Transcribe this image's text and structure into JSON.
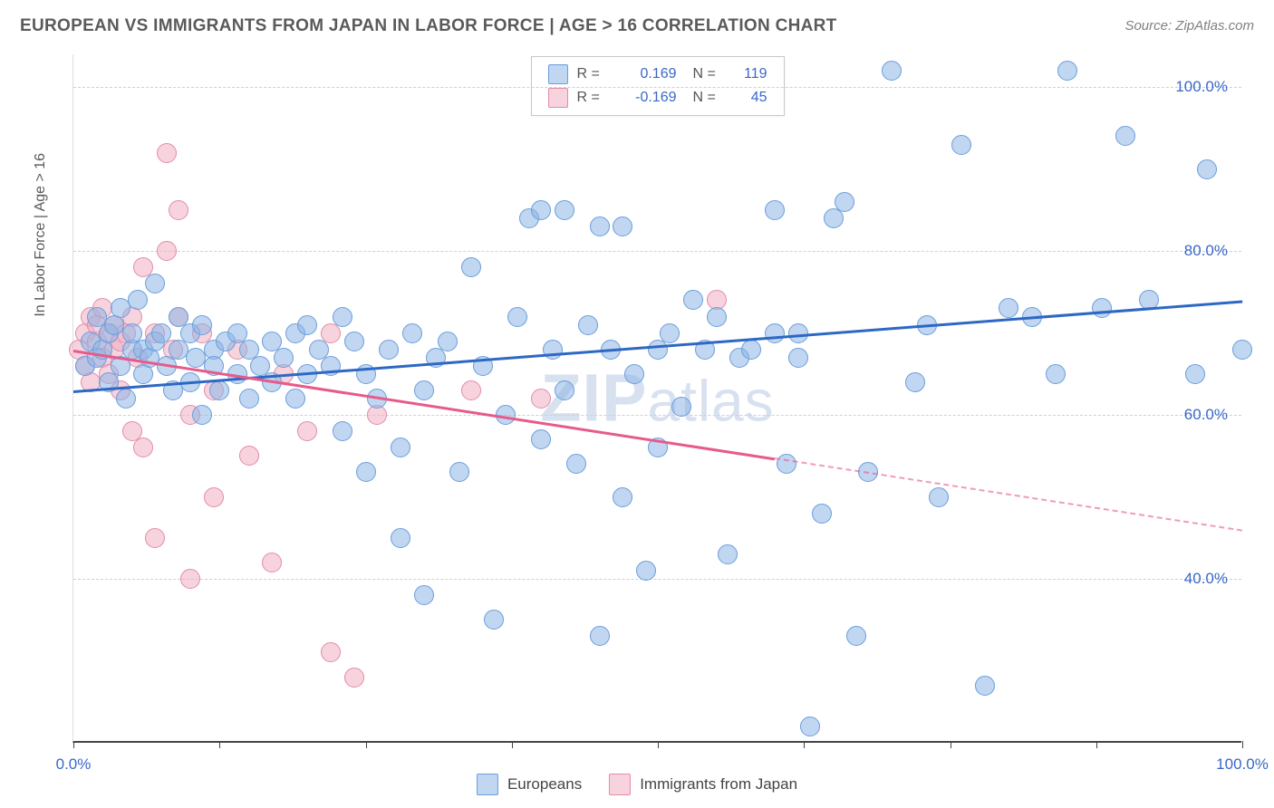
{
  "title": "EUROPEAN VS IMMIGRANTS FROM JAPAN IN LABOR FORCE | AGE > 16 CORRELATION CHART",
  "source": "Source: ZipAtlas.com",
  "ylabel": "In Labor Force | Age > 16",
  "watermark": "ZIPatlas",
  "chart": {
    "type": "scatter",
    "xlim": [
      0,
      100
    ],
    "ylim": [
      20,
      104
    ],
    "grid_color": "#d0d0d0",
    "axis_color": "#444444",
    "background_color": "#ffffff",
    "y_ticks": [
      40,
      60,
      80,
      100
    ],
    "y_tick_labels": [
      "40.0%",
      "60.0%",
      "80.0%",
      "100.0%"
    ],
    "x_ticks": [
      0,
      12.5,
      25,
      37.5,
      50,
      62.5,
      75,
      87.5,
      100
    ],
    "x_tick_labels_shown": {
      "0": "0.0%",
      "100": "100.0%"
    },
    "marker_radius": 11,
    "marker_border_width": 1.5,
    "series": {
      "europeans": {
        "label": "Europeans",
        "fill_color": "rgba(140,180,230,0.55)",
        "border_color": "#6a9edb",
        "trend_color": "#2d68c4",
        "R": "0.169",
        "N": "119",
        "trend": {
          "x1": 0,
          "y1": 63,
          "x2": 100,
          "y2": 74,
          "dash_from_x": null
        },
        "points": [
          [
            1,
            66
          ],
          [
            1.5,
            69
          ],
          [
            2,
            67
          ],
          [
            2,
            72
          ],
          [
            2.5,
            68
          ],
          [
            3,
            64
          ],
          [
            3,
            70
          ],
          [
            3.5,
            71
          ],
          [
            4,
            66
          ],
          [
            4,
            73
          ],
          [
            4.5,
            62
          ],
          [
            5,
            68
          ],
          [
            5,
            70
          ],
          [
            5.5,
            74
          ],
          [
            6,
            65
          ],
          [
            6,
            68
          ],
          [
            6.5,
            67
          ],
          [
            7,
            69
          ],
          [
            7,
            76
          ],
          [
            7.5,
            70
          ],
          [
            8,
            66
          ],
          [
            8.5,
            63
          ],
          [
            9,
            68
          ],
          [
            9,
            72
          ],
          [
            10,
            64
          ],
          [
            10,
            70
          ],
          [
            10.5,
            67
          ],
          [
            11,
            71
          ],
          [
            11,
            60
          ],
          [
            12,
            68
          ],
          [
            12,
            66
          ],
          [
            12.5,
            63
          ],
          [
            13,
            69
          ],
          [
            14,
            70
          ],
          [
            14,
            65
          ],
          [
            15,
            68
          ],
          [
            15,
            62
          ],
          [
            16,
            66
          ],
          [
            17,
            69
          ],
          [
            17,
            64
          ],
          [
            18,
            67
          ],
          [
            19,
            70
          ],
          [
            19,
            62
          ],
          [
            20,
            65
          ],
          [
            20,
            71
          ],
          [
            21,
            68
          ],
          [
            22,
            66
          ],
          [
            23,
            72
          ],
          [
            23,
            58
          ],
          [
            24,
            69
          ],
          [
            25,
            65
          ],
          [
            25,
            53
          ],
          [
            26,
            62
          ],
          [
            27,
            68
          ],
          [
            28,
            45
          ],
          [
            28,
            56
          ],
          [
            29,
            70
          ],
          [
            30,
            63
          ],
          [
            30,
            38
          ],
          [
            31,
            67
          ],
          [
            32,
            69
          ],
          [
            33,
            53
          ],
          [
            34,
            78
          ],
          [
            35,
            66
          ],
          [
            36,
            35
          ],
          [
            37,
            60
          ],
          [
            38,
            72
          ],
          [
            39,
            84
          ],
          [
            40,
            57
          ],
          [
            40,
            85
          ],
          [
            41,
            68
          ],
          [
            42,
            85
          ],
          [
            42,
            63
          ],
          [
            43,
            54
          ],
          [
            44,
            71
          ],
          [
            45,
            33
          ],
          [
            46,
            68
          ],
          [
            47,
            83
          ],
          [
            47,
            50
          ],
          [
            48,
            65
          ],
          [
            49,
            41
          ],
          [
            50,
            68
          ],
          [
            50,
            56
          ],
          [
            51,
            70
          ],
          [
            52,
            61
          ],
          [
            53,
            74
          ],
          [
            54,
            68
          ],
          [
            55,
            72
          ],
          [
            56,
            43
          ],
          [
            57,
            67
          ],
          [
            58,
            68
          ],
          [
            60,
            85
          ],
          [
            60,
            70
          ],
          [
            61,
            54
          ],
          [
            62,
            67
          ],
          [
            63,
            22
          ],
          [
            64,
            48
          ],
          [
            65,
            84
          ],
          [
            66,
            86
          ],
          [
            67,
            33
          ],
          [
            68,
            53
          ],
          [
            70,
            102
          ],
          [
            72,
            64
          ],
          [
            73,
            71
          ],
          [
            74,
            50
          ],
          [
            76,
            93
          ],
          [
            78,
            27
          ],
          [
            80,
            73
          ],
          [
            82,
            72
          ],
          [
            84,
            65
          ],
          [
            85,
            102
          ],
          [
            88,
            73
          ],
          [
            90,
            94
          ],
          [
            92,
            74
          ],
          [
            96,
            65
          ],
          [
            97,
            90
          ],
          [
            100,
            68
          ],
          [
            62,
            70
          ],
          [
            45,
            83
          ]
        ]
      },
      "japan": {
        "label": "Immigrants from Japan",
        "fill_color": "rgba(240,175,195,0.55)",
        "border_color": "#e38ba8",
        "trend_color": "#e75a8a",
        "R": "-0.169",
        "N": "45",
        "trend": {
          "x1": 0,
          "y1": 68,
          "x2": 100,
          "y2": 46,
          "dash_from_x": 60
        },
        "points": [
          [
            0.5,
            68
          ],
          [
            1,
            70
          ],
          [
            1,
            66
          ],
          [
            1.5,
            72
          ],
          [
            1.5,
            64
          ],
          [
            2,
            69
          ],
          [
            2,
            71
          ],
          [
            2.5,
            67
          ],
          [
            2.5,
            73
          ],
          [
            3,
            70
          ],
          [
            3,
            65
          ],
          [
            3.5,
            68
          ],
          [
            3.5,
            71
          ],
          [
            4,
            69
          ],
          [
            4,
            63
          ],
          [
            4.5,
            70
          ],
          [
            5,
            72
          ],
          [
            5,
            58
          ],
          [
            5.5,
            67
          ],
          [
            6,
            78
          ],
          [
            6,
            56
          ],
          [
            7,
            70
          ],
          [
            7,
            45
          ],
          [
            8,
            80
          ],
          [
            8,
            92
          ],
          [
            8.5,
            68
          ],
          [
            9,
            72
          ],
          [
            9,
            85
          ],
          [
            10,
            40
          ],
          [
            10,
            60
          ],
          [
            11,
            70
          ],
          [
            12,
            50
          ],
          [
            12,
            63
          ],
          [
            14,
            68
          ],
          [
            15,
            55
          ],
          [
            17,
            42
          ],
          [
            18,
            65
          ],
          [
            20,
            58
          ],
          [
            22,
            31
          ],
          [
            22,
            70
          ],
          [
            24,
            28
          ],
          [
            26,
            60
          ],
          [
            34,
            63
          ],
          [
            40,
            62
          ],
          [
            55,
            74
          ]
        ]
      }
    }
  },
  "legend_top": [
    {
      "swatch_fill": "rgba(140,180,230,0.55)",
      "swatch_border": "#6a9edb",
      "r_label": "R =",
      "r_val": "0.169",
      "n_label": "N =",
      "n_val": "119"
    },
    {
      "swatch_fill": "rgba(240,175,195,0.55)",
      "swatch_border": "#e38ba8",
      "r_label": "R =",
      "r_val": "-0.169",
      "n_label": "N =",
      "n_val": "45"
    }
  ],
  "legend_bottom": [
    {
      "swatch_fill": "rgba(140,180,230,0.55)",
      "swatch_border": "#6a9edb",
      "label": "Europeans"
    },
    {
      "swatch_fill": "rgba(240,175,195,0.55)",
      "swatch_border": "#e38ba8",
      "label": "Immigrants from Japan"
    }
  ]
}
